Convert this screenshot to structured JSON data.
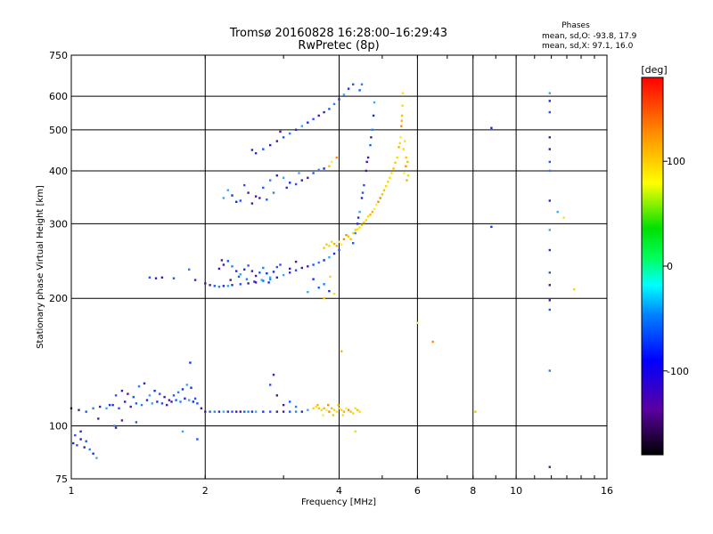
{
  "chart_data": {
    "type": "scatter",
    "title": "Tromsø 20160828 16:28:00–16:29:43",
    "subtitle": "RwPretec (8p)",
    "xlabel": "Frequency [MHz]",
    "ylabel": "Stationary phase Virtual Height [km]",
    "x_scale": "log",
    "y_scale": "log",
    "xlim": [
      1,
      16
    ],
    "ylim": [
      75,
      750
    ],
    "x_ticks": [
      1,
      2,
      4,
      6,
      8,
      10,
      16
    ],
    "y_ticks": [
      75,
      100,
      200,
      300,
      400,
      500,
      600,
      750
    ],
    "grid": true,
    "stats": {
      "heading": "Phases",
      "line_o": "mean, sd,O: -93.8, 17.9",
      "line_x": "mean, sd,X:  97.1, 16.0"
    },
    "colorbar": {
      "label": "[deg]",
      "range": [
        -180,
        180
      ],
      "ticks": [
        100,
        0,
        -100
      ]
    },
    "series": [
      {
        "points": [
          [
            1.01,
            91
          ],
          [
            1.03,
            90
          ],
          [
            1.05,
            93
          ],
          [
            1.07,
            89
          ],
          [
            1.08,
            92
          ],
          [
            1.1,
            88
          ],
          [
            1.12,
            86
          ],
          [
            1.14,
            84
          ],
          [
            1.05,
            97
          ],
          [
            1.02,
            95
          ],
          [
            1.0,
            110
          ],
          [
            1.04,
            109
          ],
          [
            1.08,
            108
          ],
          [
            1.12,
            110
          ],
          [
            1.16,
            111
          ],
          [
            1.2,
            110
          ],
          [
            1.24,
            112
          ],
          [
            1.28,
            110
          ],
          [
            1.32,
            114
          ],
          [
            1.36,
            111
          ],
          [
            1.4,
            113
          ],
          [
            1.44,
            112
          ],
          [
            1.48,
            115
          ],
          [
            1.52,
            113
          ],
          [
            1.56,
            114
          ],
          [
            1.6,
            113
          ],
          [
            1.64,
            112
          ],
          [
            1.68,
            114
          ],
          [
            1.72,
            115
          ],
          [
            1.76,
            114
          ],
          [
            1.8,
            116
          ],
          [
            1.84,
            115
          ],
          [
            1.88,
            114
          ],
          [
            1.92,
            113
          ],
          [
            1.96,
            110
          ],
          [
            2.0,
            108
          ],
          [
            2.05,
            108
          ],
          [
            2.1,
            108
          ],
          [
            2.15,
            108
          ],
          [
            2.2,
            108
          ],
          [
            2.25,
            108
          ],
          [
            2.3,
            108
          ],
          [
            2.35,
            108
          ],
          [
            2.4,
            108
          ],
          [
            2.45,
            108
          ],
          [
            2.5,
            108
          ],
          [
            2.55,
            108
          ],
          [
            2.6,
            108
          ],
          [
            2.7,
            108
          ],
          [
            2.8,
            108
          ],
          [
            2.9,
            108
          ],
          [
            3.0,
            108
          ],
          [
            3.1,
            108
          ],
          [
            3.2,
            108
          ],
          [
            3.3,
            108
          ],
          [
            3.4,
            109
          ],
          [
            1.22,
            112
          ],
          [
            1.26,
            118
          ],
          [
            1.3,
            121
          ],
          [
            1.34,
            119
          ],
          [
            1.38,
            117
          ],
          [
            1.42,
            124
          ],
          [
            1.46,
            126
          ],
          [
            1.5,
            118
          ],
          [
            1.54,
            121
          ],
          [
            1.58,
            119
          ],
          [
            1.62,
            117
          ],
          [
            1.66,
            115
          ],
          [
            1.7,
            118
          ],
          [
            1.74,
            120
          ],
          [
            1.78,
            122
          ],
          [
            1.82,
            125
          ],
          [
            1.86,
            123
          ],
          [
            1.9,
            116
          ],
          [
            1.26,
            99
          ],
          [
            1.3,
            103
          ],
          [
            1.4,
            102
          ],
          [
            1.25,
            100
          ],
          [
            1.15,
            104
          ],
          [
            1.78,
            97
          ],
          [
            1.85,
            141
          ],
          [
            1.92,
            93
          ],
          [
            2.0,
            217
          ],
          [
            2.05,
            215
          ],
          [
            2.1,
            214
          ],
          [
            2.15,
            213
          ],
          [
            2.2,
            214
          ],
          [
            2.25,
            214
          ],
          [
            2.3,
            215
          ],
          [
            2.4,
            216
          ],
          [
            2.5,
            217
          ],
          [
            2.6,
            218
          ],
          [
            2.7,
            220
          ],
          [
            2.8,
            222
          ],
          [
            2.9,
            224
          ],
          [
            3.0,
            227
          ],
          [
            3.1,
            230
          ],
          [
            3.2,
            233
          ],
          [
            3.3,
            236
          ],
          [
            3.4,
            238
          ],
          [
            3.5,
            240
          ],
          [
            3.6,
            243
          ],
          [
            3.7,
            246
          ],
          [
            3.8,
            250
          ],
          [
            3.9,
            255
          ],
          [
            4.0,
            260
          ],
          [
            2.15,
            235
          ],
          [
            2.2,
            240
          ],
          [
            2.25,
            245
          ],
          [
            2.3,
            238
          ],
          [
            2.35,
            232
          ],
          [
            2.4,
            228
          ],
          [
            2.45,
            234
          ],
          [
            2.5,
            239
          ],
          [
            2.55,
            232
          ],
          [
            2.6,
            226
          ],
          [
            2.65,
            230
          ],
          [
            2.7,
            236
          ],
          [
            2.75,
            229
          ],
          [
            2.8,
            224
          ],
          [
            2.85,
            231
          ],
          [
            2.9,
            237
          ],
          [
            2.18,
            246
          ],
          [
            2.28,
            221
          ],
          [
            2.38,
            225
          ],
          [
            2.48,
            222
          ],
          [
            2.58,
            219
          ],
          [
            2.68,
            221
          ],
          [
            2.78,
            218
          ],
          [
            1.5,
            224
          ],
          [
            1.55,
            223
          ],
          [
            1.6,
            224
          ],
          [
            1.7,
            223
          ],
          [
            1.84,
            234
          ],
          [
            1.9,
            221
          ],
          [
            2.2,
            345
          ],
          [
            2.3,
            350
          ],
          [
            2.4,
            340
          ],
          [
            2.5,
            355
          ],
          [
            2.6,
            348
          ],
          [
            2.7,
            365
          ],
          [
            2.8,
            380
          ],
          [
            2.9,
            390
          ],
          [
            3.0,
            385
          ],
          [
            3.1,
            375
          ],
          [
            3.2,
            372
          ],
          [
            3.3,
            380
          ],
          [
            3.4,
            385
          ],
          [
            3.5,
            395
          ],
          [
            3.6,
            402
          ],
          [
            3.7,
            405
          ],
          [
            2.25,
            360
          ],
          [
            2.35,
            338
          ],
          [
            2.45,
            370
          ],
          [
            2.55,
            335
          ],
          [
            2.65,
            345
          ],
          [
            2.75,
            342
          ],
          [
            2.85,
            355
          ],
          [
            3.05,
            365
          ],
          [
            3.25,
            395
          ],
          [
            2.6,
            440
          ],
          [
            2.7,
            450
          ],
          [
            2.8,
            460
          ],
          [
            2.9,
            470
          ],
          [
            3.0,
            480
          ],
          [
            3.1,
            490
          ],
          [
            3.2,
            500
          ],
          [
            3.3,
            510
          ],
          [
            3.4,
            520
          ],
          [
            3.5,
            530
          ],
          [
            3.6,
            540
          ],
          [
            3.7,
            550
          ],
          [
            3.8,
            560
          ],
          [
            3.9,
            575
          ],
          [
            4.0,
            590
          ],
          [
            4.1,
            605
          ],
          [
            4.2,
            625
          ],
          [
            4.3,
            640
          ],
          [
            2.55,
            448
          ],
          [
            2.95,
            495
          ],
          [
            4.3,
            270
          ],
          [
            4.35,
            285
          ],
          [
            4.4,
            300
          ],
          [
            4.45,
            320
          ],
          [
            4.5,
            345
          ],
          [
            4.55,
            370
          ],
          [
            4.6,
            400
          ],
          [
            4.65,
            430
          ],
          [
            4.7,
            460
          ],
          [
            4.75,
            500
          ],
          [
            4.78,
            540
          ],
          [
            4.8,
            580
          ],
          [
            4.42,
            310
          ],
          [
            4.52,
            355
          ],
          [
            4.62,
            420
          ],
          [
            4.72,
            480
          ],
          [
            3.6,
            212
          ],
          [
            3.7,
            216
          ],
          [
            3.8,
            208
          ],
          [
            3.4,
            207
          ],
          [
            3.5,
            222
          ],
          [
            2.95,
            240
          ],
          [
            3.1,
            235
          ],
          [
            3.2,
            244
          ],
          [
            4.45,
            620
          ],
          [
            4.5,
            640
          ],
          [
            8.8,
            505
          ],
          [
            11.9,
            610
          ],
          [
            11.9,
            585
          ],
          [
            11.9,
            550
          ],
          [
            11.9,
            480
          ],
          [
            11.9,
            450
          ],
          [
            11.9,
            420
          ],
          [
            11.9,
            400
          ],
          [
            11.9,
            340
          ],
          [
            11.9,
            290
          ],
          [
            11.9,
            260
          ],
          [
            11.9,
            230
          ],
          [
            11.9,
            215
          ],
          [
            11.9,
            198
          ],
          [
            11.9,
            188
          ],
          [
            11.9,
            135
          ],
          [
            11.9,
            80
          ],
          [
            12.4,
            320
          ],
          [
            8.8,
            295
          ],
          [
            2.8,
            125
          ],
          [
            2.9,
            118
          ],
          [
            3.0,
            112
          ],
          [
            3.1,
            114
          ],
          [
            3.2,
            111
          ],
          [
            2.85,
            132
          ]
        ]
      },
      {
        "points": [
          [
            3.5,
            110
          ],
          [
            3.55,
            111
          ],
          [
            3.6,
            110
          ],
          [
            3.65,
            109
          ],
          [
            3.7,
            110
          ],
          [
            3.75,
            109
          ],
          [
            3.8,
            108
          ],
          [
            3.85,
            110
          ],
          [
            3.9,
            109
          ],
          [
            3.95,
            108
          ],
          [
            4.0,
            110
          ],
          [
            4.05,
            109
          ],
          [
            4.1,
            108
          ],
          [
            4.15,
            110
          ],
          [
            4.2,
            109
          ],
          [
            4.25,
            108
          ],
          [
            4.3,
            107
          ],
          [
            4.35,
            110
          ],
          [
            4.4,
            109
          ],
          [
            4.45,
            108
          ],
          [
            3.58,
            112
          ],
          [
            3.68,
            106
          ],
          [
            3.78,
            112
          ],
          [
            3.88,
            106
          ],
          [
            3.98,
            112
          ],
          [
            4.08,
            106
          ],
          [
            3.7,
            263
          ],
          [
            3.8,
            266
          ],
          [
            3.9,
            269
          ],
          [
            4.0,
            272
          ],
          [
            4.1,
            276
          ],
          [
            4.2,
            280
          ],
          [
            4.3,
            285
          ],
          [
            4.4,
            291
          ],
          [
            4.5,
            298
          ],
          [
            4.6,
            306
          ],
          [
            4.7,
            315
          ],
          [
            4.8,
            325
          ],
          [
            4.9,
            338
          ],
          [
            5.0,
            352
          ],
          [
            5.1,
            368
          ],
          [
            5.2,
            385
          ],
          [
            5.3,
            405
          ],
          [
            5.4,
            430
          ],
          [
            5.45,
            455
          ],
          [
            5.5,
            480
          ],
          [
            5.52,
            510
          ],
          [
            5.54,
            540
          ],
          [
            5.55,
            570
          ],
          [
            5.56,
            610
          ],
          [
            3.75,
            268
          ],
          [
            3.85,
            272
          ],
          [
            3.95,
            266
          ],
          [
            4.05,
            268
          ],
          [
            4.15,
            282
          ],
          [
            4.25,
            276
          ],
          [
            4.35,
            290
          ],
          [
            4.45,
            294
          ],
          [
            4.55,
            302
          ],
          [
            4.65,
            312
          ],
          [
            4.75,
            320
          ],
          [
            4.85,
            333
          ],
          [
            4.95,
            345
          ],
          [
            5.05,
            360
          ],
          [
            5.15,
            377
          ],
          [
            5.25,
            395
          ],
          [
            5.35,
            418
          ],
          [
            5.48,
            465
          ],
          [
            5.53,
            525
          ],
          [
            5.6,
            395
          ],
          [
            5.65,
            410
          ],
          [
            5.7,
            420
          ],
          [
            5.58,
            450
          ],
          [
            5.62,
            470
          ],
          [
            5.66,
            430
          ],
          [
            5.72,
            390
          ],
          [
            5.68,
            380
          ],
          [
            3.85,
            420
          ],
          [
            3.95,
            430
          ],
          [
            3.8,
            410
          ],
          [
            3.82,
            225
          ],
          [
            3.9,
            205
          ],
          [
            3.7,
            200
          ],
          [
            4.35,
            97
          ],
          [
            4.05,
            150
          ],
          [
            6.0,
            175
          ],
          [
            6.5,
            158
          ],
          [
            8.1,
            108
          ],
          [
            13.5,
            210
          ],
          [
            12.8,
            310
          ]
        ]
      }
    ]
  }
}
